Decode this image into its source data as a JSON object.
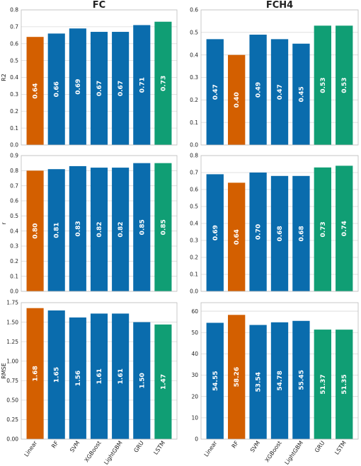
{
  "colors": {
    "baseline": "#d35f00",
    "model": "#0a6cad",
    "best": "#109e74"
  },
  "chart_data": [
    {
      "type": "bar",
      "title": "FC",
      "ylabel": "R2",
      "ylim": [
        0,
        0.8
      ],
      "yticks": [
        "0.0",
        "0.1",
        "0.2",
        "0.3",
        "0.4",
        "0.5",
        "0.6",
        "0.7",
        "0.8"
      ],
      "ytick_values": [
        0,
        0.1,
        0.2,
        0.3,
        0.4,
        0.5,
        0.6,
        0.7,
        0.8
      ],
      "categories": [
        "Linear",
        "RF",
        "SVM",
        "XGBoost",
        "LightGBM",
        "GRU",
        "LSTM"
      ],
      "values": [
        0.64,
        0.66,
        0.69,
        0.67,
        0.67,
        0.71,
        0.73
      ],
      "labels": [
        "0.64",
        "0.66",
        "0.69",
        "0.67",
        "0.67",
        "0.71",
        "0.73"
      ],
      "colors": [
        "baseline",
        "model",
        "model",
        "model",
        "model",
        "model",
        "best"
      ],
      "grid": true
    },
    {
      "type": "bar",
      "title": "FCH4",
      "ylabel": "",
      "ylim": [
        0,
        0.6
      ],
      "yticks": [
        "0.0",
        "0.1",
        "0.2",
        "0.3",
        "0.4",
        "0.5",
        "0.6"
      ],
      "ytick_values": [
        0,
        0.1,
        0.2,
        0.3,
        0.4,
        0.5,
        0.6
      ],
      "categories": [
        "Linear",
        "RF",
        "SVM",
        "XGBoost",
        "LightGBM",
        "GRU",
        "LSTM"
      ],
      "values": [
        0.47,
        0.4,
        0.49,
        0.47,
        0.45,
        0.53,
        0.53
      ],
      "labels": [
        "0.47",
        "0.40",
        "0.49",
        "0.47",
        "0.45",
        "0.53",
        "0.53"
      ],
      "colors": [
        "model",
        "baseline",
        "model",
        "model",
        "model",
        "best",
        "best"
      ],
      "grid": true
    },
    {
      "type": "bar",
      "title": "",
      "ylabel": "r",
      "ylim": [
        0,
        0.9
      ],
      "yticks": [
        "0.0",
        "0.1",
        "0.2",
        "0.3",
        "0.4",
        "0.5",
        "0.6",
        "0.7",
        "0.8",
        "0.9"
      ],
      "ytick_values": [
        0,
        0.1,
        0.2,
        0.3,
        0.4,
        0.5,
        0.6,
        0.7,
        0.8,
        0.9
      ],
      "categories": [
        "Linear",
        "RF",
        "SVM",
        "XGBoost",
        "LightGBM",
        "GRU",
        "LSTM"
      ],
      "values": [
        0.8,
        0.81,
        0.83,
        0.82,
        0.82,
        0.85,
        0.85
      ],
      "labels": [
        "0.80",
        "0.81",
        "0.83",
        "0.82",
        "0.82",
        "0.85",
        "0.85"
      ],
      "colors": [
        "baseline",
        "model",
        "model",
        "model",
        "model",
        "model",
        "best"
      ],
      "grid": true
    },
    {
      "type": "bar",
      "title": "",
      "ylabel": "",
      "ylim": [
        0,
        0.8
      ],
      "yticks": [
        "0.0",
        "0.1",
        "0.2",
        "0.3",
        "0.4",
        "0.5",
        "0.6",
        "0.7",
        "0.8"
      ],
      "ytick_values": [
        0,
        0.1,
        0.2,
        0.3,
        0.4,
        0.5,
        0.6,
        0.7,
        0.8
      ],
      "categories": [
        "Linear",
        "RF",
        "SVM",
        "XGBoost",
        "LightGBM",
        "GRU",
        "LSTM"
      ],
      "values": [
        0.69,
        0.64,
        0.7,
        0.68,
        0.68,
        0.73,
        0.74
      ],
      "labels": [
        "0.69",
        "0.64",
        "0.70",
        "0.68",
        "0.68",
        "0.73",
        "0.74"
      ],
      "colors": [
        "model",
        "baseline",
        "model",
        "model",
        "model",
        "best",
        "best"
      ],
      "grid": true
    },
    {
      "type": "bar",
      "title": "",
      "ylabel": "RMSE",
      "ylim": [
        0,
        1.75
      ],
      "yticks": [
        "0.00",
        "0.25",
        "0.50",
        "0.75",
        "1.00",
        "1.25",
        "1.50",
        "1.75"
      ],
      "ytick_values": [
        0,
        0.25,
        0.5,
        0.75,
        1.0,
        1.25,
        1.5,
        1.75
      ],
      "categories": [
        "Linear",
        "RF",
        "SVM",
        "XGBoost",
        "LightGBM",
        "GRU",
        "LSTM"
      ],
      "values": [
        1.68,
        1.65,
        1.56,
        1.61,
        1.61,
        1.5,
        1.47
      ],
      "labels": [
        "1.68",
        "1.65",
        "1.56",
        "1.61",
        "1.61",
        "1.50",
        "1.47"
      ],
      "colors": [
        "baseline",
        "model",
        "model",
        "model",
        "model",
        "model",
        "best"
      ],
      "grid": true
    },
    {
      "type": "bar",
      "title": "",
      "ylabel": "",
      "ylim": [
        0,
        64
      ],
      "yticks": [
        "0",
        "10",
        "20",
        "30",
        "40",
        "50",
        "60"
      ],
      "ytick_values": [
        0,
        10,
        20,
        30,
        40,
        50,
        60
      ],
      "categories": [
        "Linear",
        "RF",
        "SVM",
        "XGBoost",
        "LightGBM",
        "GRU",
        "LSTM"
      ],
      "values": [
        54.55,
        58.26,
        53.54,
        54.78,
        55.45,
        51.37,
        51.35
      ],
      "labels": [
        "54.55",
        "58.26",
        "53.54",
        "54.78",
        "55.45",
        "51.37",
        "51.35"
      ],
      "colors": [
        "model",
        "baseline",
        "model",
        "model",
        "model",
        "best",
        "best"
      ],
      "grid": true
    }
  ]
}
